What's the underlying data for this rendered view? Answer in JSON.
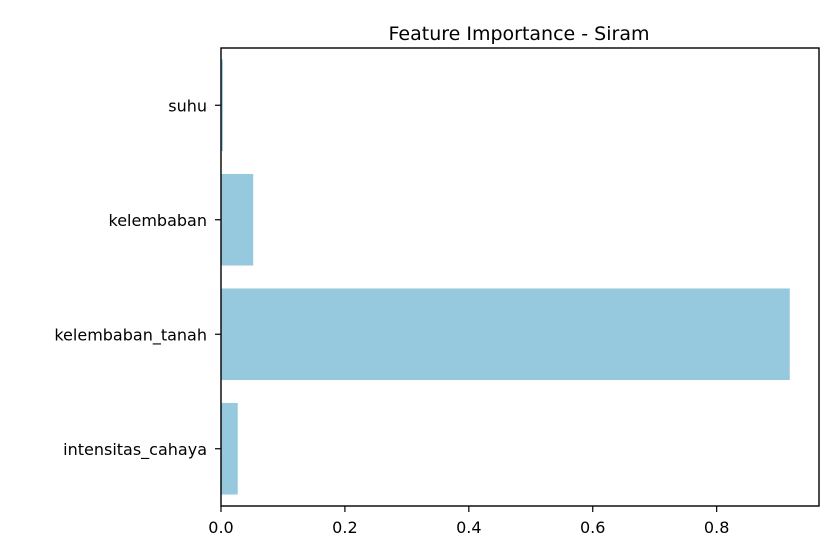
{
  "chart_data": {
    "type": "bar",
    "orientation": "horizontal",
    "title": "Feature Importance - Siram",
    "xlabel": "",
    "ylabel": "",
    "categories": [
      "suhu",
      "kelembaban",
      "kelembaban_tanah",
      "intensitas_cahaya"
    ],
    "values": [
      0.003,
      0.052,
      0.918,
      0.027
    ],
    "xlim": [
      0,
      0.96
    ],
    "xticks": [
      0.0,
      0.2,
      0.4,
      0.6,
      0.8
    ],
    "xtick_labels": [
      "0.0",
      "0.2",
      "0.4",
      "0.6",
      "0.8"
    ],
    "bar_color": "#96c9de",
    "grid": false,
    "legend": "none"
  }
}
